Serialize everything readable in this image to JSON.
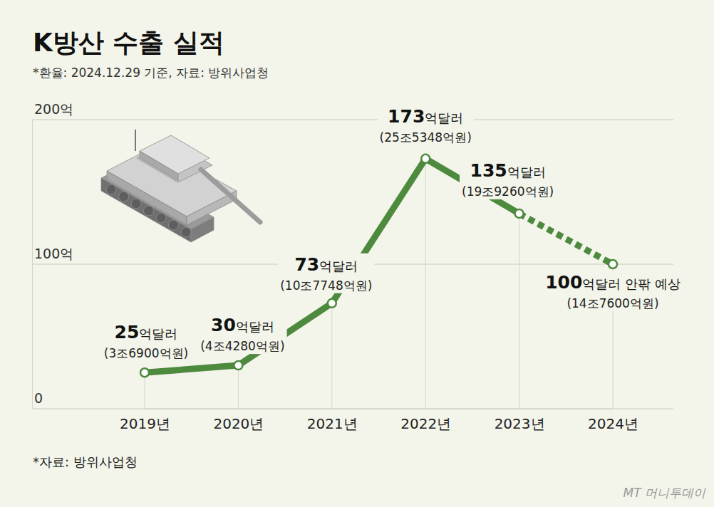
{
  "chart_data": {
    "type": "line",
    "title": "K방산 수출 실적",
    "subtitle": "*환율: 2024.12.29 기준, 자료: 방위사업청",
    "categories": [
      "2019년",
      "2020년",
      "2021년",
      "2022년",
      "2023년",
      "2024년"
    ],
    "values": [
      25,
      30,
      73,
      173,
      135,
      100
    ],
    "value_labels": [
      "25억달러",
      "30억달러",
      "73억달러",
      "173억달러",
      "135억달러",
      "100억달러 안팎 예상"
    ],
    "won_labels": [
      "(3조6900억원)",
      "(4조4280억원)",
      "(10조7748억원)",
      "(25조5348억원)",
      "(19조9260억원)",
      "(14조7600억원)"
    ],
    "estimated": [
      false,
      false,
      false,
      false,
      false,
      true
    ],
    "color": "#4d8a3e",
    "marker": "circle",
    "line_style": "solid",
    "data_labels": true,
    "ylim": [
      0,
      200
    ],
    "yticks": [
      0,
      {
        "value": 100,
        "label": "100억"
      },
      {
        "value": 200,
        "label": "200억"
      }
    ],
    "grid": true,
    "source": "*자료: 방위사업청",
    "watermark": "MT 머니투데이"
  }
}
